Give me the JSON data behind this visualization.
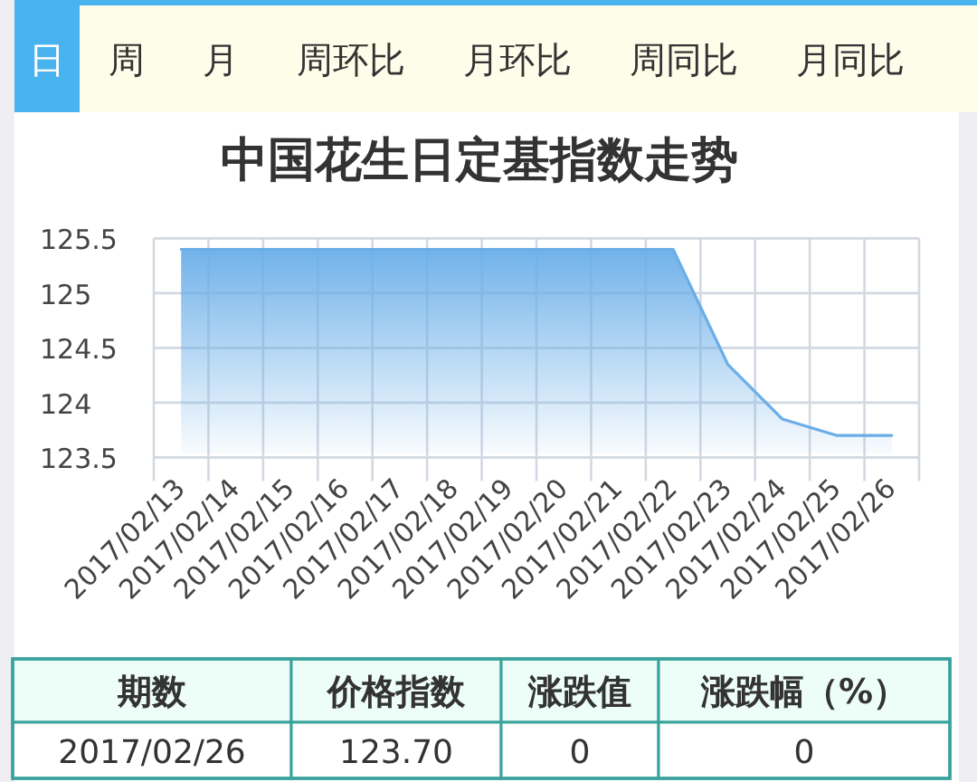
{
  "chart_data": {
    "type": "area",
    "title": "中国花生日定基指数走势",
    "categories": [
      "2017/02/13",
      "2017/02/14",
      "2017/02/15",
      "2017/02/16",
      "2017/02/17",
      "2017/02/18",
      "2017/02/19",
      "2017/02/20",
      "2017/02/21",
      "2017/02/22",
      "2017/02/23",
      "2017/02/24",
      "2017/02/25",
      "2017/02/26"
    ],
    "values": [
      125.4,
      125.4,
      125.4,
      125.4,
      125.4,
      125.4,
      125.4,
      125.4,
      125.4,
      125.4,
      124.35,
      123.85,
      123.7,
      123.7
    ],
    "color": "#6aaee8",
    "ylim": [
      123.5,
      125.5
    ],
    "yticks": [
      123.5,
      124,
      124.5,
      125,
      125.5
    ],
    "grid": true,
    "annotations": [
      "日",
      "周",
      "月",
      "周环比",
      "月环比",
      "周同比",
      "月同比",
      "期数",
      "价格指数",
      "涨跌值",
      "涨跌幅（%）",
      "2017/02/26",
      "123.70",
      "0",
      "0"
    ]
  }
}
